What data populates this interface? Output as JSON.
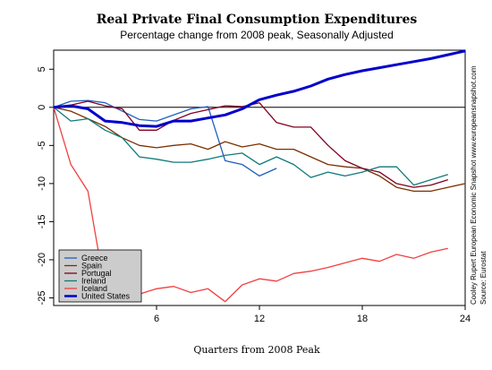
{
  "chart_data": {
    "type": "line",
    "title": "Real Private Final Consumption Expenditures",
    "subtitle": "Percentage change from 2008 peak, Seasonally Adjusted",
    "xlabel": "Quarters from 2008 Peak",
    "ylabel": "",
    "xlim": [
      0,
      24
    ],
    "ylim": [
      -26,
      7.5
    ],
    "xticks": [
      6,
      12,
      18,
      24
    ],
    "yticks": [
      5,
      0,
      -5,
      -10,
      -15,
      -20,
      -25
    ],
    "zero_line": true,
    "grid": false,
    "legend_position": "bottom-left",
    "credits": [
      "Cooley Rupert European Economic Snapshot  www.europeansnapshot.com",
      "Source: Eurostat"
    ],
    "series": [
      {
        "name": "Greece",
        "color": "#1f5fbf",
        "x": [
          0,
          1,
          2,
          3,
          4,
          5,
          6,
          7,
          8,
          9,
          10,
          11,
          12,
          13
        ],
        "y": [
          0,
          0.8,
          0.9,
          0.6,
          -0.5,
          -1.6,
          -1.8,
          -1.0,
          -0.2,
          0.1,
          -7.0,
          -7.5,
          -9.0,
          -8.0
        ]
      },
      {
        "name": "Spain",
        "color": "#7a3000",
        "x": [
          0,
          1,
          2,
          3,
          4,
          5,
          6,
          7,
          8,
          9,
          10,
          11,
          12,
          13,
          14,
          15,
          16,
          17,
          18,
          19,
          20,
          21,
          22,
          23,
          24
        ],
        "y": [
          0,
          -0.5,
          -1.5,
          -2.5,
          -4.0,
          -5.0,
          -5.3,
          -5.0,
          -4.8,
          -5.5,
          -4.5,
          -5.2,
          -4.8,
          -5.5,
          -5.5,
          -6.5,
          -7.5,
          -7.8,
          -8.0,
          -9.0,
          -10.5,
          -11.0,
          -11.0,
          -10.5,
          -10.0
        ]
      },
      {
        "name": "Portugal",
        "color": "#800020",
        "x": [
          0,
          1,
          2,
          3,
          4,
          5,
          6,
          7,
          8,
          9,
          10,
          11,
          12,
          13,
          14,
          15,
          16,
          17,
          18,
          19,
          20,
          21,
          22,
          23
        ],
        "y": [
          0,
          0.3,
          0.8,
          0.2,
          -0.2,
          -3.0,
          -3.0,
          -1.7,
          -0.8,
          -0.3,
          0.2,
          0.1,
          0.6,
          -2.0,
          -2.6,
          -2.6,
          -5.0,
          -7.0,
          -8.0,
          -8.5,
          -10.0,
          -10.5,
          -10.2,
          -9.5
        ]
      },
      {
        "name": "Ireland",
        "color": "#0f7a7a",
        "x": [
          0,
          1,
          2,
          3,
          4,
          5,
          6,
          7,
          8,
          9,
          10,
          11,
          12,
          13,
          14,
          15,
          16,
          17,
          18,
          19,
          20,
          21,
          22,
          23
        ],
        "y": [
          0,
          -1.8,
          -1.5,
          -3.0,
          -4.0,
          -6.5,
          -6.8,
          -7.2,
          -7.2,
          -6.8,
          -6.3,
          -6.0,
          -7.5,
          -6.5,
          -7.5,
          -9.2,
          -8.5,
          -9.0,
          -8.5,
          -7.8,
          -7.8,
          -10.2,
          -9.5,
          -8.8
        ]
      },
      {
        "name": "Iceland",
        "color": "#f04040",
        "x": [
          0,
          1,
          2,
          3,
          4,
          5,
          6,
          7,
          8,
          9,
          10,
          11,
          12,
          13,
          14,
          15,
          16,
          17,
          18,
          19,
          20,
          21,
          22,
          23
        ],
        "y": [
          0,
          -7.5,
          -11.0,
          -24.0,
          -25.0,
          -24.5,
          -23.8,
          -23.5,
          -24.3,
          -23.8,
          -25.5,
          -23.3,
          -22.5,
          -22.8,
          -21.8,
          -21.5,
          -21.0,
          -20.4,
          -19.8,
          -20.2,
          -19.3,
          -19.8,
          -19.0,
          -18.5
        ]
      },
      {
        "name": "United States",
        "color": "#0000cc",
        "thick": true,
        "x": [
          0,
          1,
          2,
          3,
          4,
          5,
          6,
          7,
          8,
          9,
          10,
          11,
          12,
          13,
          14,
          15,
          16,
          17,
          18,
          19,
          20,
          21,
          22,
          23,
          24
        ],
        "y": [
          0,
          0.2,
          -0.2,
          -1.8,
          -2.0,
          -2.4,
          -2.5,
          -1.8,
          -1.8,
          -1.4,
          -1.0,
          -0.2,
          1.0,
          1.6,
          2.1,
          2.8,
          3.7,
          4.3,
          4.8,
          5.2,
          5.6,
          6.0,
          6.4,
          6.9,
          7.4
        ]
      }
    ]
  }
}
